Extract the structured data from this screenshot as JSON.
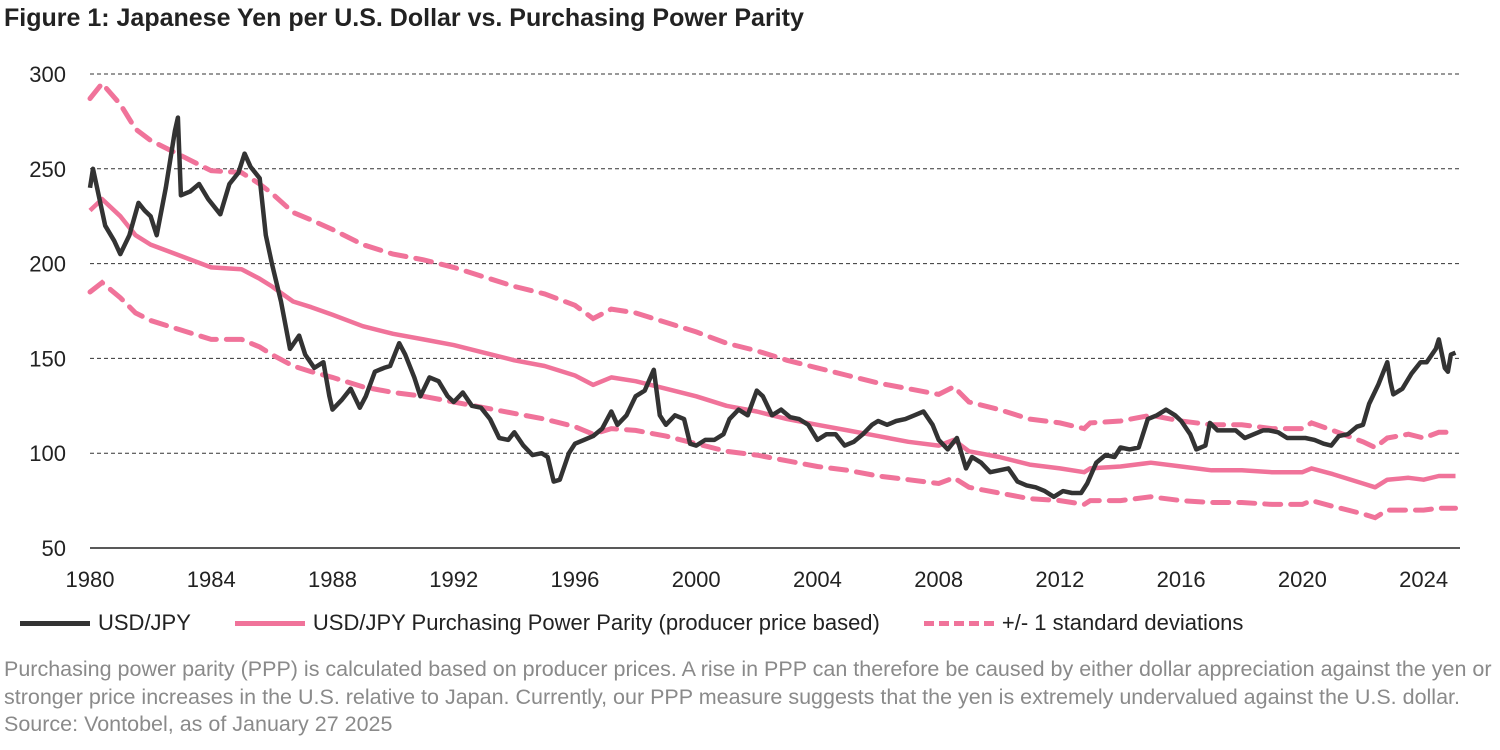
{
  "title": "Figure 1: Japanese Yen per U.S. Dollar vs. Purchasing Power Parity",
  "note": "Purchasing power parity (PPP) is calculated based on producer prices. A rise in PPP can therefore be caused by either dollar appreciation against the yen or stronger price increases in the U.S. relative to Japan. Currently, our PPP measure suggests that the yen is extremely undervalued against the U.S. dollar. Source: Vontobel, as of January 27 2025",
  "chart_data": {
    "type": "line",
    "title": "Figure 1: Japanese Yen per U.S. Dollar vs. Purchasing Power Parity",
    "xlim": [
      1980,
      2025.2
    ],
    "ylim": [
      50,
      300
    ],
    "x_ticks": [
      "1980",
      "1984",
      "1988",
      "1992",
      "1996",
      "2000",
      "2004",
      "2008",
      "2012",
      "2016",
      "2020",
      "2024"
    ],
    "y_ticks": [
      "50",
      "100",
      "150",
      "200",
      "250",
      "300"
    ],
    "grid": "horizontal dashed",
    "legend": "bottom",
    "series": [
      {
        "name": "USD/JPY",
        "color": "#333333",
        "style": "solid",
        "x": [
          1980.0,
          1980.1,
          1980.3,
          1980.5,
          1980.8,
          1981.0,
          1981.3,
          1981.6,
          1981.8,
          1982.0,
          1982.2,
          1982.5,
          1982.8,
          1982.9,
          1983.0,
          1983.3,
          1983.6,
          1983.9,
          1984.0,
          1984.3,
          1984.6,
          1984.9,
          1985.1,
          1985.3,
          1985.6,
          1985.8,
          1986.0,
          1986.3,
          1986.6,
          1986.9,
          1987.1,
          1987.4,
          1987.7,
          1987.9,
          1988.0,
          1988.3,
          1988.6,
          1988.9,
          1989.1,
          1989.4,
          1989.7,
          1989.9,
          1990.2,
          1990.4,
          1990.7,
          1990.9,
          1991.2,
          1991.5,
          1991.8,
          1992.0,
          1992.3,
          1992.6,
          1992.9,
          1993.2,
          1993.5,
          1993.8,
          1994.0,
          1994.3,
          1994.6,
          1994.9,
          1995.1,
          1995.3,
          1995.5,
          1995.8,
          1996.0,
          1996.3,
          1996.6,
          1996.9,
          1997.2,
          1997.4,
          1997.7,
          1998.0,
          1998.3,
          1998.6,
          1998.8,
          1999.0,
          1999.3,
          1999.6,
          1999.8,
          2000.0,
          2000.3,
          2000.6,
          2000.9,
          2001.1,
          2001.4,
          2001.7,
          2002.0,
          2002.2,
          2002.5,
          2002.8,
          2003.1,
          2003.4,
          2003.7,
          2004.0,
          2004.3,
          2004.6,
          2004.9,
          2005.2,
          2005.5,
          2005.8,
          2006.0,
          2006.3,
          2006.6,
          2006.9,
          2007.2,
          2007.5,
          2007.8,
          2008.0,
          2008.3,
          2008.6,
          2008.9,
          2009.1,
          2009.4,
          2009.7,
          2010.0,
          2010.3,
          2010.6,
          2010.9,
          2011.2,
          2011.5,
          2011.8,
          2012.1,
          2012.4,
          2012.7,
          2012.9,
          2013.2,
          2013.5,
          2013.8,
          2014.0,
          2014.3,
          2014.6,
          2014.9,
          2015.2,
          2015.5,
          2015.8,
          2016.0,
          2016.3,
          2016.5,
          2016.8,
          2016.95,
          2017.2,
          2017.5,
          2017.8,
          2018.1,
          2018.4,
          2018.7,
          2018.9,
          2019.2,
          2019.5,
          2019.8,
          2020.1,
          2020.4,
          2020.7,
          2020.95,
          2021.2,
          2021.5,
          2021.8,
          2022.0,
          2022.2,
          2022.5,
          2022.8,
          2022.9,
          2023.0,
          2023.3,
          2023.6,
          2023.9,
          2024.1,
          2024.4,
          2024.5,
          2024.7,
          2024.8,
          2024.9,
          2025.05
        ],
        "values": [
          240,
          250,
          235,
          220,
          212,
          205,
          215,
          232,
          228,
          225,
          215,
          240,
          270,
          277,
          236,
          238,
          242,
          234,
          232,
          226,
          242,
          248,
          258,
          251,
          245,
          215,
          200,
          180,
          155,
          162,
          152,
          145,
          148,
          130,
          123,
          128,
          134,
          124,
          130,
          143,
          145,
          146,
          158,
          152,
          140,
          130,
          140,
          138,
          130,
          127,
          132,
          125,
          124,
          118,
          108,
          107,
          111,
          104,
          99,
          100,
          98,
          85,
          86,
          100,
          105,
          107,
          109,
          113,
          122,
          115,
          120,
          130,
          133,
          144,
          120,
          115,
          120,
          118,
          105,
          104,
          107,
          107,
          110,
          118,
          123,
          120,
          133,
          130,
          120,
          123,
          119,
          118,
          115,
          107,
          110,
          110,
          104,
          106,
          110,
          115,
          117,
          115,
          117,
          118,
          120,
          122,
          115,
          107,
          102,
          108,
          92,
          98,
          95,
          90,
          91,
          92,
          85,
          83,
          82,
          80,
          77,
          80,
          79,
          79,
          84,
          95,
          99,
          98,
          103,
          102,
          103,
          118,
          120,
          123,
          120,
          117,
          110,
          102,
          104,
          116,
          112,
          112,
          112,
          108,
          110,
          112,
          112,
          111,
          108,
          108,
          108,
          107,
          105,
          104,
          109,
          110,
          114,
          115,
          126,
          136,
          148,
          138,
          131,
          134,
          142,
          148,
          148,
          155,
          160,
          145,
          143,
          152,
          153
        ]
      },
      {
        "name": "USD/JPY Purchasing Power Parity (producer price based)",
        "color": "#f0739a",
        "style": "solid",
        "x": [
          1980,
          1980.4,
          1981,
          1981.5,
          1982,
          1983,
          1984,
          1985,
          1985.6,
          1986,
          1986.7,
          1987.3,
          1988,
          1989,
          1990,
          1991,
          1992,
          1993,
          1994,
          1995,
          1996,
          1996.6,
          1997.2,
          1998,
          1999,
          2000,
          2001,
          2002,
          2003,
          2004,
          2005,
          2006,
          2007,
          2008,
          2008.5,
          2009,
          2010,
          2011,
          2012,
          2012.8,
          2013,
          2014,
          2015,
          2016,
          2017,
          2018,
          2019,
          2020,
          2020.3,
          2021,
          2022,
          2022.4,
          2022.8,
          2023.5,
          2024,
          2024.5,
          2025.05
        ],
        "values": [
          228,
          234,
          225,
          215,
          210,
          204,
          198,
          197,
          192,
          188,
          180,
          177,
          173,
          167,
          163,
          160,
          157,
          153,
          149,
          146,
          141,
          136,
          140,
          138,
          134,
          130,
          125,
          122,
          118,
          115,
          112,
          109,
          106,
          104,
          107,
          101,
          98,
          94,
          92,
          90,
          92,
          93,
          95,
          93,
          91,
          91,
          90,
          90,
          92,
          89,
          84,
          82,
          86,
          87,
          86,
          88,
          88
        ]
      },
      {
        "name": "+/- 1 standard deviations",
        "color": "#f0739a",
        "style": "dashed",
        "x": [
          1980,
          1980.4,
          1981,
          1981.5,
          1982,
          1983,
          1984,
          1985,
          1985.6,
          1986,
          1986.7,
          1987.3,
          1988,
          1989,
          1990,
          1991,
          1992,
          1993,
          1994,
          1995,
          1996,
          1996.6,
          1997.2,
          1998,
          1999,
          2000,
          2001,
          2002,
          2003,
          2004,
          2005,
          2006,
          2007,
          2008,
          2008.5,
          2009,
          2010,
          2011,
          2012,
          2012.8,
          2013,
          2014,
          2015,
          2016,
          2017,
          2018,
          2019,
          2020,
          2020.3,
          2021,
          2022,
          2022.4,
          2022.8,
          2023.5,
          2024,
          2024.5,
          2025.05
        ],
        "upper": [
          287,
          295,
          284,
          271,
          265,
          257,
          249,
          248,
          242,
          237,
          227,
          223,
          218,
          210,
          205,
          202,
          198,
          193,
          188,
          184,
          178,
          171,
          176,
          174,
          169,
          164,
          158,
          154,
          149,
          145,
          141,
          137,
          134,
          131,
          135,
          127,
          123,
          118,
          116,
          113,
          116,
          117,
          120,
          117,
          115,
          115,
          113,
          113,
          116,
          112,
          106,
          103,
          108,
          110,
          108,
          111,
          111
        ],
        "lower": [
          185,
          190,
          182,
          174,
          170,
          165,
          160,
          160,
          156,
          152,
          146,
          143,
          140,
          135,
          132,
          130,
          127,
          124,
          121,
          118,
          114,
          110,
          113,
          112,
          109,
          105,
          101,
          99,
          96,
          93,
          91,
          88,
          86,
          84,
          87,
          82,
          79,
          76,
          75,
          73,
          75,
          75,
          77,
          75,
          74,
          74,
          73,
          73,
          75,
          72,
          68,
          66,
          70,
          70,
          70,
          71,
          71
        ]
      }
    ]
  }
}
